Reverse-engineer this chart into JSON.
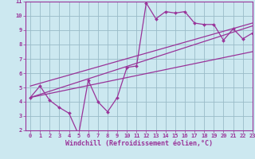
{
  "xlabel": "Windchill (Refroidissement éolien,°C)",
  "bg_color": "#cce8f0",
  "grid_color": "#99bbc8",
  "line_color": "#993399",
  "x_data": [
    0,
    1,
    2,
    3,
    4,
    5,
    6,
    7,
    8,
    9,
    10,
    11,
    12,
    13,
    14,
    15,
    16,
    17,
    18,
    19,
    20,
    21,
    22,
    23
  ],
  "y_main": [
    4.3,
    5.1,
    4.1,
    3.6,
    3.2,
    1.7,
    5.5,
    4.0,
    3.3,
    4.3,
    6.4,
    6.5,
    10.9,
    9.8,
    10.3,
    10.2,
    10.3,
    9.5,
    9.4,
    9.4,
    8.3,
    9.1,
    8.4,
    8.8
  ],
  "trend1_x": [
    0,
    23
  ],
  "trend1_y": [
    4.3,
    9.3
  ],
  "trend2_x": [
    0,
    23
  ],
  "trend2_y": [
    5.1,
    9.5
  ],
  "trend3_x": [
    0,
    23
  ],
  "trend3_y": [
    4.3,
    7.5
  ],
  "ylim": [
    2,
    11
  ],
  "xlim": [
    -0.5,
    23
  ],
  "yticks": [
    2,
    3,
    4,
    5,
    6,
    7,
    8,
    9,
    10,
    11
  ],
  "xticks": [
    0,
    1,
    2,
    3,
    4,
    5,
    6,
    7,
    8,
    9,
    10,
    11,
    12,
    13,
    14,
    15,
    16,
    17,
    18,
    19,
    20,
    21,
    22,
    23
  ],
  "tick_fontsize": 5,
  "xlabel_fontsize": 6
}
